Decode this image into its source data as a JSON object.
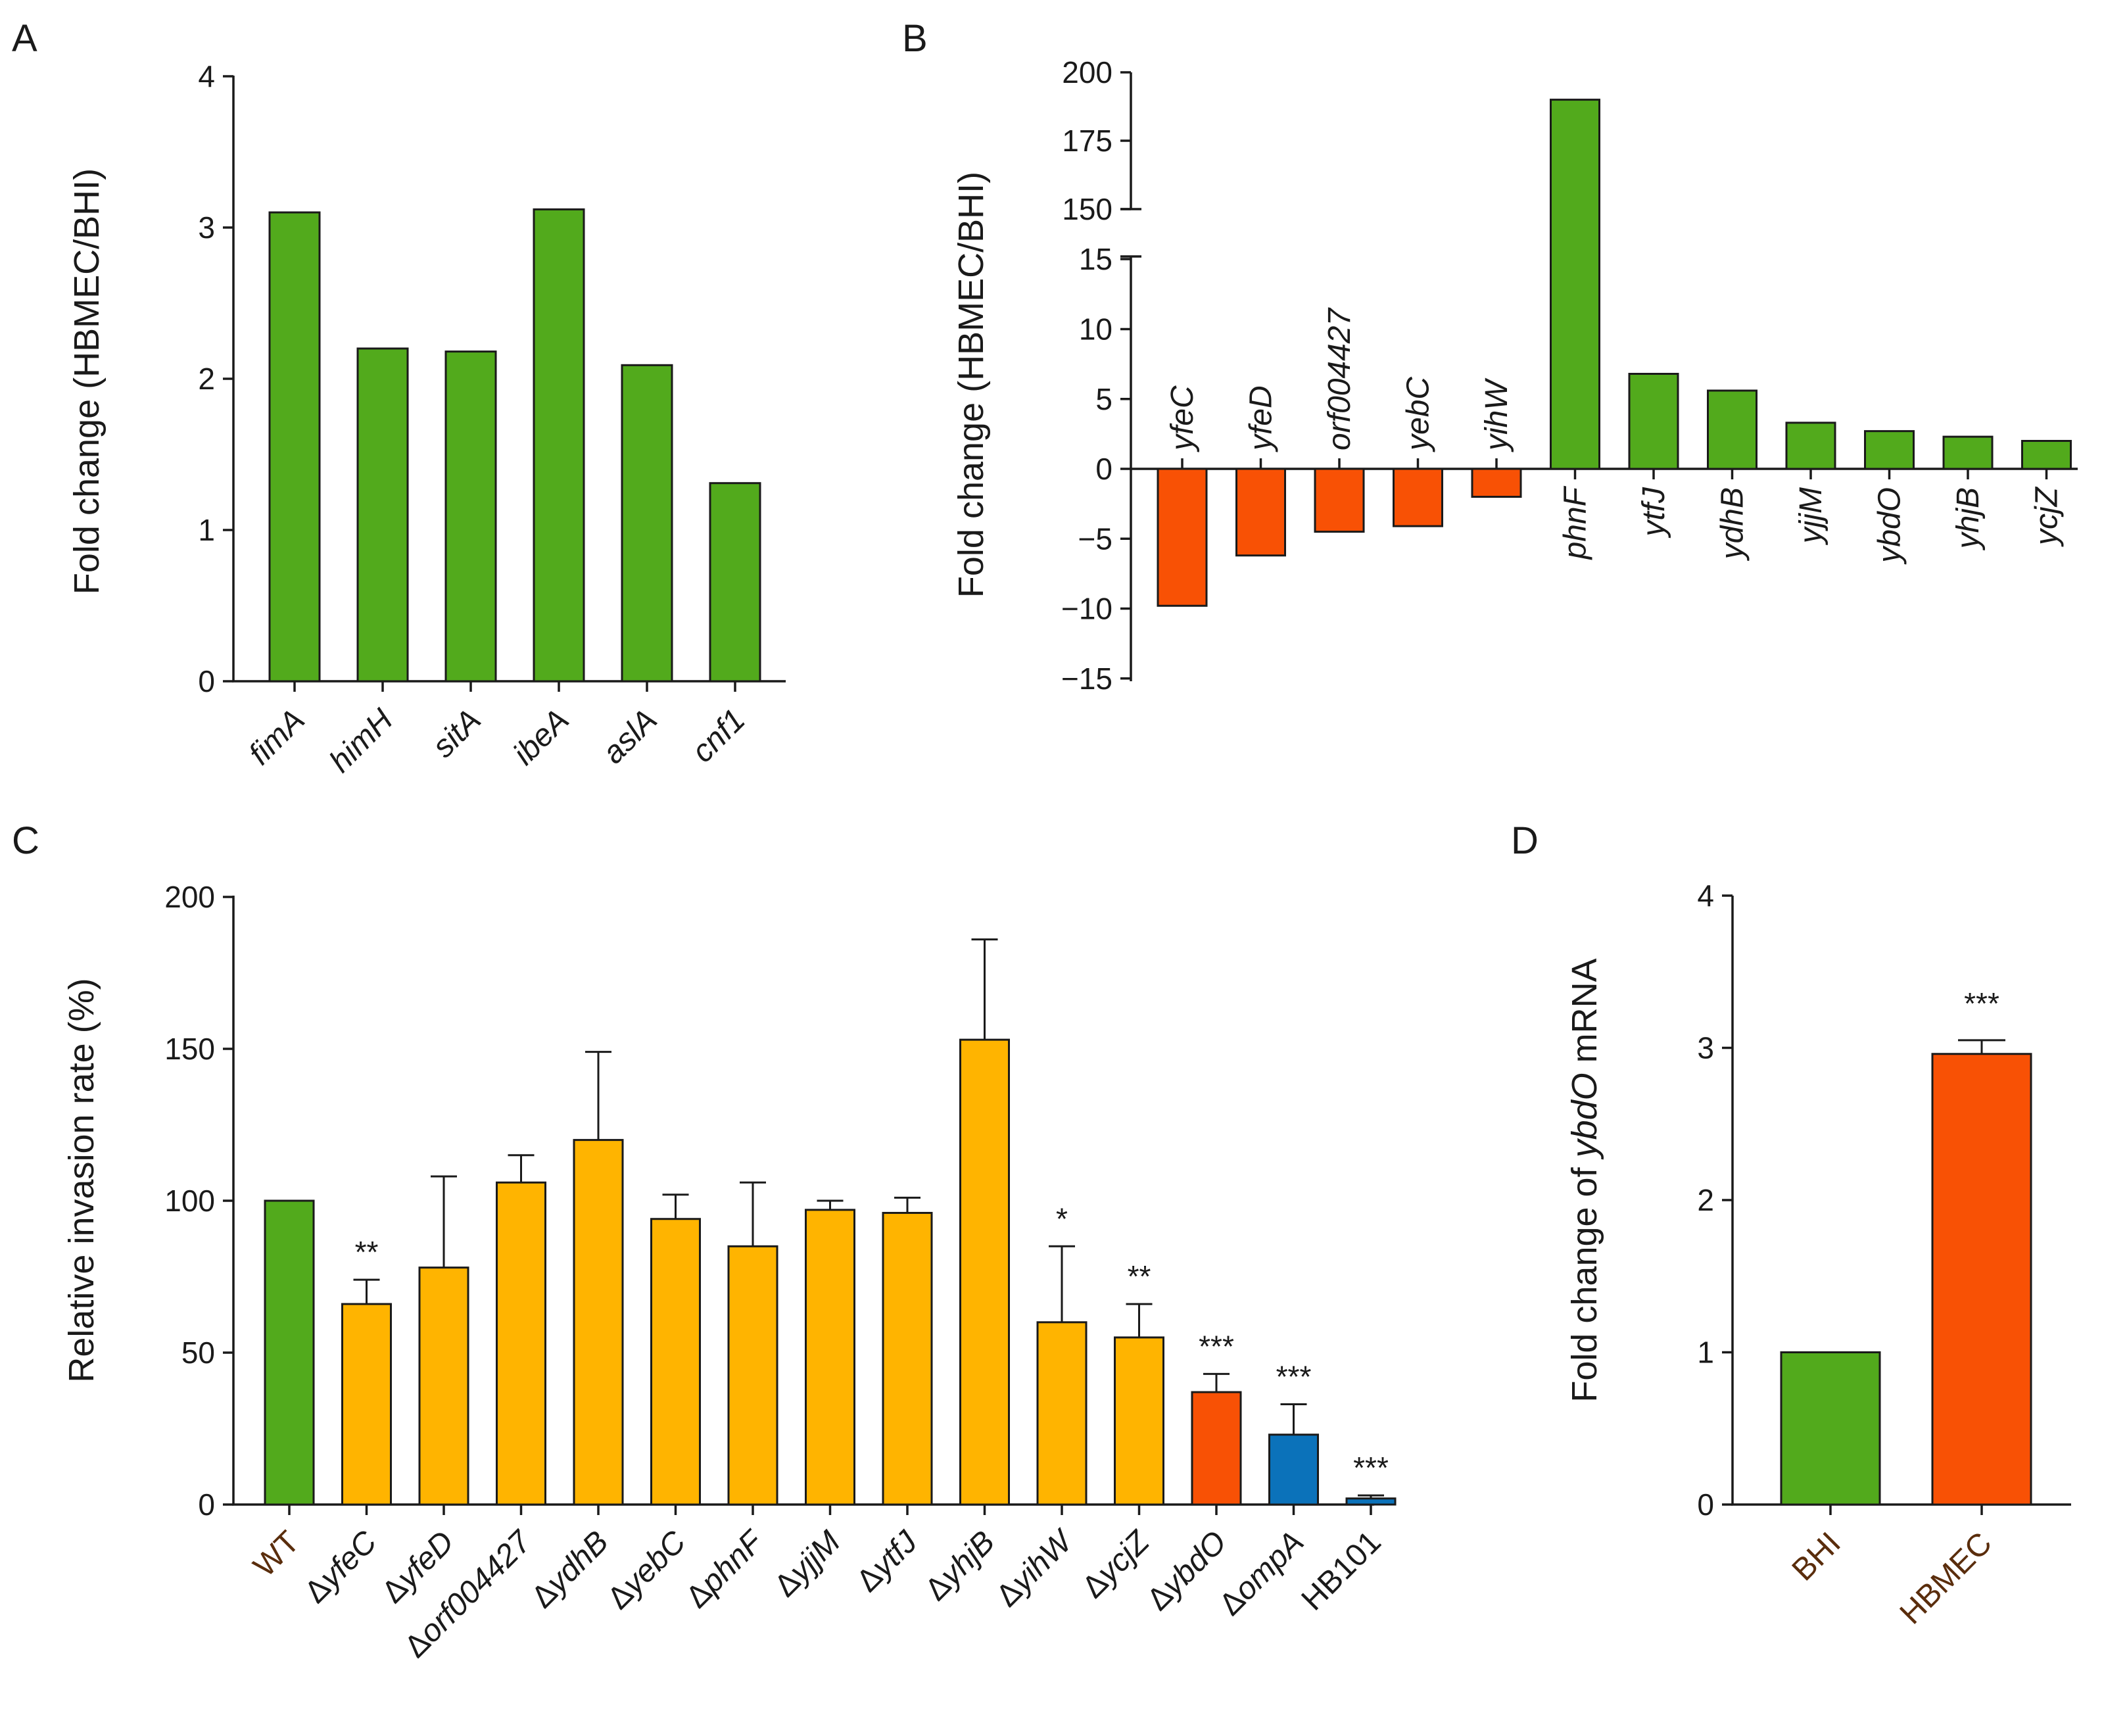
{
  "colors": {
    "green": "#52AA1C",
    "orange": "#F85105",
    "yellow": "#FFB400",
    "blue": "#0B72BA",
    "brown": "#5A2D0C",
    "black": "#1a1a1a"
  },
  "chart_data": [
    {
      "panel": "A",
      "type": "bar",
      "ylabel": "Fold change (HBMEC/BHI)",
      "ylim": [
        0,
        4
      ],
      "yticks": [
        "0",
        "1",
        "2",
        "3",
        "4"
      ],
      "categories": [
        "fimA",
        "himH",
        "sitA",
        "ibeA",
        "aslA",
        "cnf1"
      ],
      "values": [
        3.1,
        2.2,
        2.18,
        3.12,
        2.09,
        1.31
      ],
      "bar_colors": [
        "green",
        "green",
        "green",
        "green",
        "green",
        "green"
      ]
    },
    {
      "panel": "B",
      "type": "bar",
      "ylabel": "Fold change (HBMEC/BHI)",
      "ylim": [
        -15,
        200
      ],
      "axis_break": [
        15,
        150
      ],
      "yticks": [
        "200",
        "175",
        "150",
        "15",
        "10",
        "5",
        "0",
        "−5",
        "−10",
        "−15"
      ],
      "categories": [
        "yfeC",
        "yfeD",
        "orf004427",
        "yebC",
        "yihW",
        "phnF",
        "ytfJ",
        "ydhB",
        "yjjM",
        "ybdO",
        "yhjB",
        "ycjZ"
      ],
      "values": [
        -9.8,
        -6.2,
        -4.5,
        -4.1,
        -2.0,
        190,
        6.8,
        5.6,
        3.3,
        2.7,
        2.3,
        2.0
      ],
      "bar_colors": [
        "orange",
        "orange",
        "orange",
        "orange",
        "orange",
        "green",
        "green",
        "green",
        "green",
        "green",
        "green",
        "green"
      ]
    },
    {
      "panel": "C",
      "type": "bar",
      "ylabel": "Relative invasion rate (%)",
      "ylim": [
        0,
        200
      ],
      "yticks": [
        "0",
        "50",
        "100",
        "150",
        "200"
      ],
      "categories": [
        {
          "prefix": "",
          "name": "WT",
          "italic": false,
          "color": "brown"
        },
        {
          "prefix": "Δ",
          "name": "yfeC",
          "italic": true,
          "color": "black"
        },
        {
          "prefix": "Δ",
          "name": "yfeD",
          "italic": true,
          "color": "black"
        },
        {
          "prefix": "Δ",
          "name": "orf004427",
          "italic": true,
          "color": "black"
        },
        {
          "prefix": "Δ",
          "name": "ydhB",
          "italic": true,
          "color": "black"
        },
        {
          "prefix": "Δ",
          "name": "yebC",
          "italic": true,
          "color": "black"
        },
        {
          "prefix": "Δ",
          "name": "phnF",
          "italic": true,
          "color": "black"
        },
        {
          "prefix": "Δ",
          "name": "yjjM",
          "italic": true,
          "color": "black"
        },
        {
          "prefix": "Δ",
          "name": "ytfJ",
          "italic": true,
          "color": "black"
        },
        {
          "prefix": "Δ",
          "name": "yhjB",
          "italic": true,
          "color": "black"
        },
        {
          "prefix": "Δ",
          "name": "yihW",
          "italic": true,
          "color": "black"
        },
        {
          "prefix": "Δ",
          "name": "ycjZ",
          "italic": true,
          "color": "black"
        },
        {
          "prefix": "Δ",
          "name": "ybdO",
          "italic": true,
          "color": "black"
        },
        {
          "prefix": "Δ",
          "name": "ompA",
          "italic": true,
          "color": "black"
        },
        {
          "prefix": "",
          "name": "HB101",
          "italic": false,
          "color": "black"
        }
      ],
      "values": [
        100,
        66,
        78,
        106,
        120,
        94,
        85,
        97,
        96,
        153,
        60,
        55,
        37,
        23,
        2
      ],
      "errors": [
        0,
        8,
        30,
        9,
        29,
        8,
        21,
        3,
        5,
        33,
        25,
        11,
        6,
        10,
        1
      ],
      "significance": [
        "",
        "**",
        "",
        "",
        "",
        "",
        "",
        "",
        "",
        "",
        "*",
        "**",
        "***",
        "***",
        "***"
      ],
      "bar_colors": [
        "green",
        "yellow",
        "yellow",
        "yellow",
        "yellow",
        "yellow",
        "yellow",
        "yellow",
        "yellow",
        "yellow",
        "yellow",
        "yellow",
        "orange",
        "blue",
        "blue"
      ]
    },
    {
      "panel": "D",
      "type": "bar",
      "ylabel_parts": [
        "Fold change of ",
        "ybdO",
        " mRNA"
      ],
      "ylim": [
        0,
        4
      ],
      "yticks": [
        "0",
        "1",
        "2",
        "3",
        "4"
      ],
      "categories": [
        "BHI",
        "HBMEC"
      ],
      "values": [
        1.0,
        2.96
      ],
      "errors": [
        0,
        0.09
      ],
      "significance": [
        "",
        "***"
      ],
      "bar_colors": [
        "green",
        "orange"
      ]
    }
  ]
}
